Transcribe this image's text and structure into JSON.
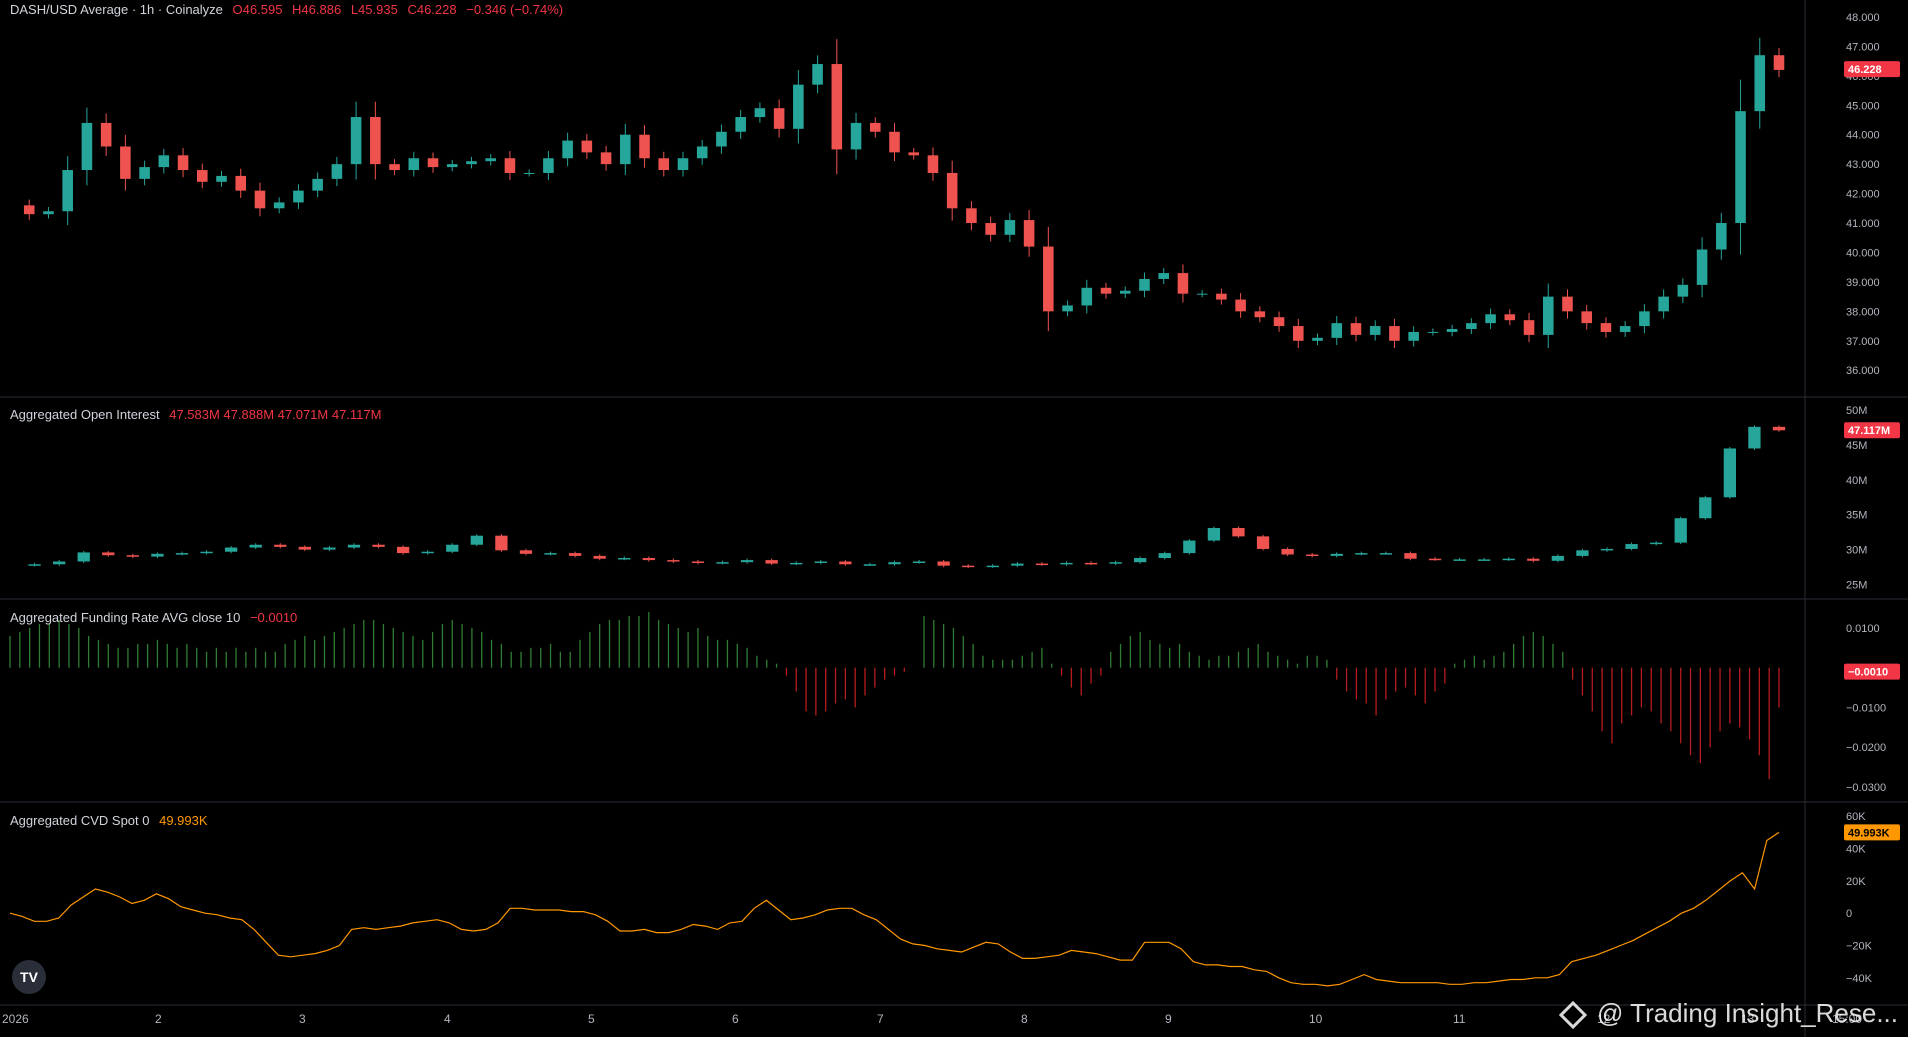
{
  "legends": {
    "price": {
      "name": "DASH/USD Average · 1h · Coinalyze",
      "open": "O46.595",
      "high": "H46.886",
      "low": "L45.935",
      "close": "C46.228",
      "change": "−0.346 (−0.74%)"
    },
    "oi": {
      "name": "Aggregated Open Interest",
      "values": "47.583M  47.888M  47.071M  47.117M"
    },
    "funding": {
      "name": "Aggregated Funding Rate AVG close 10",
      "value": "−0.0010"
    },
    "cvd": {
      "name": "Aggregated CVD Spot 0",
      "value": "49.993K"
    }
  },
  "logo": {
    "label": "TV"
  },
  "watermark": {
    "text": "@ Trading Insight_Rese..."
  },
  "colors": {
    "up": "#26a69a",
    "down": "#ef5350",
    "cvd": "#ff9800",
    "funding_pos": "#2e7d32",
    "funding_neg": "#b71c1c",
    "separator": "#2a2e39",
    "axis_text": "#b2b5be",
    "badge_red": "#f23645",
    "badge_orange": "#ff9800"
  },
  "chart_data": [
    {
      "type": "candlestick",
      "title": "DASH/USD Average · 1h · Coinalyze",
      "x_ticks": [
        "2026",
        "2",
        "3",
        "4",
        "5",
        "6",
        "7",
        "8",
        "9",
        "10",
        "11",
        "12",
        "13",
        "15:00"
      ],
      "y_ticks": [
        "48.000",
        "47.000",
        "46.000",
        "45.000",
        "44.000",
        "43.000",
        "42.000",
        "41.000",
        "40.000",
        "39.000",
        "38.000",
        "37.000",
        "36.000"
      ],
      "ylim": [
        35.6,
        48.1
      ],
      "last_value_label": "46.228",
      "last_value": 46.228,
      "close_series": [
        41.6,
        41.3,
        41.4,
        42.8,
        44.4,
        43.6,
        42.5,
        42.9,
        43.3,
        42.8,
        42.4,
        42.6,
        42.1,
        41.5,
        41.7,
        42.1,
        42.5,
        43.0,
        44.6,
        43.0,
        42.8,
        43.2,
        42.9,
        43.0,
        43.1,
        43.2,
        42.7,
        42.7,
        43.2,
        43.8,
        43.4,
        43.0,
        44.0,
        43.2,
        42.8,
        43.2,
        43.6,
        44.1,
        44.6,
        44.9,
        44.2,
        45.7,
        46.4,
        43.5,
        44.4,
        44.1,
        43.4,
        43.3,
        42.7,
        41.5,
        41.0,
        40.6,
        41.1,
        40.2,
        38.0,
        38.2,
        38.8,
        38.6,
        38.7,
        39.1,
        39.3,
        38.6,
        38.6,
        38.4,
        38.0,
        37.8,
        37.5,
        37.0,
        37.1,
        37.6,
        37.2,
        37.5,
        37.0,
        37.3,
        37.3,
        37.4,
        37.6,
        37.9,
        37.7,
        37.2,
        38.5,
        38.0,
        37.6,
        37.3,
        37.5,
        38.0,
        38.5,
        38.9,
        40.1,
        41.0,
        44.8,
        46.7,
        46.2
      ]
    },
    {
      "type": "candlestick",
      "title": "Aggregated Open Interest",
      "y_ticks": [
        "50M",
        "45M",
        "40M",
        "35M",
        "30M",
        "25M"
      ],
      "ylim": [
        24.5,
        50.3
      ],
      "last_value_label": "47.117M",
      "last_value": 47.117,
      "series": [
        {
          "name": "Aggregated Open Interest",
          "values": [
            27.8,
            27.9,
            28.3,
            29.6,
            29.2,
            29.0,
            29.4,
            29.5,
            29.7,
            30.3,
            30.7,
            30.4,
            30.0,
            30.3,
            30.7,
            30.4,
            29.5,
            29.7,
            30.7,
            32.0,
            29.9,
            29.4,
            29.5,
            29.1,
            28.7,
            28.8,
            28.5,
            28.3,
            28.1,
            28.2,
            28.5,
            28.0,
            28.1,
            28.3,
            27.9,
            27.9,
            28.2,
            28.3,
            27.7,
            27.6,
            27.7,
            28.0,
            27.9,
            28.1,
            28.0,
            28.2,
            28.8,
            29.5,
            31.3,
            33.1,
            31.9,
            30.1,
            29.3,
            29.1,
            29.4,
            29.5,
            29.5,
            28.7,
            28.6,
            28.6,
            28.6,
            28.7,
            28.4,
            29.1,
            29.9,
            30.1,
            30.8,
            31.0,
            34.5,
            37.5,
            44.5,
            47.6,
            47.1
          ]
        }
      ]
    },
    {
      "type": "bar",
      "title": "Aggregated Funding Rate AVG close 10",
      "y_ticks": [
        "0.0100",
        "0.0000",
        "−0.0100",
        "−0.0200",
        "−0.0300"
      ],
      "ylim": [
        -0.031,
        0.0145
      ],
      "last_value_label": "−0.0010",
      "last_value": -0.001,
      "series": [
        {
          "name": "Aggregated Funding Rate AVG close 10",
          "values": [
            0.008,
            0.009,
            0.01,
            0.011,
            0.011,
            0.012,
            0.011,
            0.01,
            0.008,
            0.007,
            0.006,
            0.005,
            0.005,
            0.006,
            0.006,
            0.007,
            0.006,
            0.005,
            0.006,
            0.005,
            0.004,
            0.005,
            0.004,
            0.005,
            0.004,
            0.005,
            0.004,
            0.004,
            0.006,
            0.007,
            0.008,
            0.007,
            0.008,
            0.009,
            0.01,
            0.011,
            0.012,
            0.012,
            0.011,
            0.01,
            0.009,
            0.008,
            0.007,
            0.009,
            0.011,
            0.012,
            0.011,
            0.01,
            0.009,
            0.007,
            0.006,
            0.004,
            0.004,
            0.005,
            0.005,
            0.006,
            0.004,
            0.004,
            0.007,
            0.009,
            0.011,
            0.012,
            0.012,
            0.013,
            0.013,
            0.014,
            0.012,
            0.011,
            0.01,
            0.009,
            0.01,
            0.008,
            0.007,
            0.007,
            0.006,
            0.005,
            0.003,
            0.002,
            0.001,
            -0.002,
            -0.006,
            -0.011,
            -0.012,
            -0.011,
            -0.009,
            -0.008,
            -0.01,
            -0.007,
            -0.005,
            -0.003,
            -0.002,
            -0.001,
            0.0,
            0.013,
            0.012,
            0.011,
            0.01,
            0.008,
            0.006,
            0.003,
            0.002,
            0.002,
            0.002,
            0.003,
            0.004,
            0.005,
            0.001,
            -0.002,
            -0.005,
            -0.007,
            -0.004,
            -0.002,
            0.004,
            0.006,
            0.008,
            0.009,
            0.007,
            0.006,
            0.005,
            0.006,
            0.004,
            0.003,
            0.002,
            0.003,
            0.003,
            0.004,
            0.005,
            0.006,
            0.004,
            0.003,
            0.002,
            0.001,
            0.003,
            0.003,
            0.002,
            -0.003,
            -0.006,
            -0.008,
            -0.009,
            -0.012,
            -0.008,
            -0.006,
            -0.005,
            -0.007,
            -0.009,
            -0.006,
            -0.004,
            0.001,
            0.002,
            0.003,
            0.002,
            0.003,
            0.004,
            0.006,
            0.008,
            0.009,
            0.008,
            0.006,
            0.004,
            -0.003,
            -0.007,
            -0.011,
            -0.016,
            -0.019,
            -0.014,
            -0.012,
            -0.01,
            -0.011,
            -0.014,
            -0.016,
            -0.019,
            -0.022,
            -0.024,
            -0.02,
            -0.016,
            -0.014,
            -0.015,
            -0.018,
            -0.022,
            -0.028,
            -0.01
          ]
        }
      ]
    },
    {
      "type": "line",
      "title": "Aggregated CVD Spot 0",
      "y_ticks": [
        "60K",
        "40K",
        "20K",
        "0",
        "−20K",
        "−40K"
      ],
      "ylim": [
        -50,
        62
      ],
      "last_value_label": "49.993K",
      "last_value": 49.993,
      "series": [
        {
          "name": "Aggregated CVD Spot 0",
          "values": [
            0,
            -2,
            -5,
            -5,
            -3,
            5,
            10,
            15,
            13,
            10,
            6,
            8,
            12,
            9,
            4,
            2,
            0,
            -1,
            -3,
            -4,
            -10,
            -18,
            -26,
            -27,
            -26,
            -25,
            -23,
            -20,
            -10,
            -9,
            -10,
            -9,
            -8,
            -6,
            -5,
            -4,
            -6,
            -10,
            -11,
            -10,
            -6,
            3,
            3,
            2,
            2,
            2,
            1,
            1,
            -1,
            -5,
            -11,
            -11,
            -10,
            -12,
            -12,
            -10,
            -7,
            -8,
            -10,
            -6,
            -5,
            3,
            8,
            2,
            -4,
            -3,
            -1,
            2,
            3,
            3,
            -1,
            -4,
            -10,
            -16,
            -19,
            -20,
            -22,
            -23,
            -24,
            -21,
            -18,
            -19,
            -24,
            -28,
            -28,
            -27,
            -26,
            -23,
            -24,
            -25,
            -27,
            -29,
            -29,
            -18,
            -18,
            -18,
            -22,
            -30,
            -32,
            -32,
            -33,
            -33,
            -35,
            -36,
            -40,
            -43,
            -44,
            -44,
            -45,
            -44,
            -41,
            -38,
            -41,
            -42,
            -43,
            -43,
            -43,
            -43,
            -44,
            -44,
            -43,
            -43,
            -42,
            -41,
            -41,
            -40,
            -40,
            -38,
            -30,
            -28,
            -26,
            -23,
            -20,
            -17,
            -13,
            -9,
            -5,
            0,
            3,
            8,
            14,
            20,
            25,
            15,
            45,
            50
          ]
        }
      ]
    }
  ]
}
